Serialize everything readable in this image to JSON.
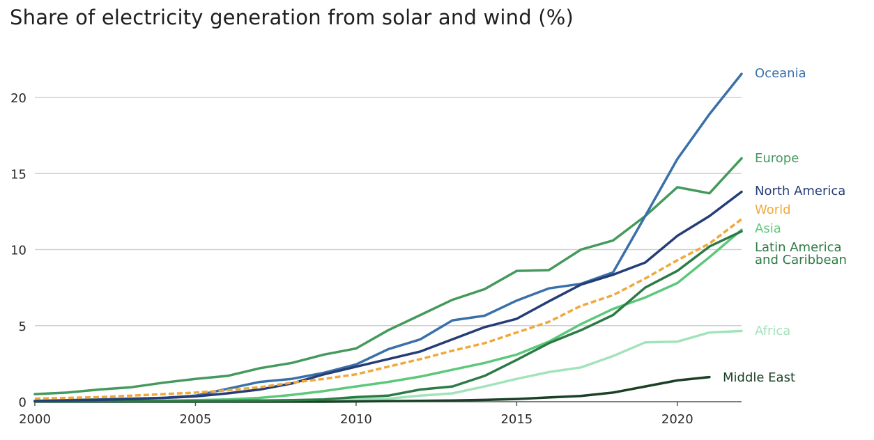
{
  "chart_data": {
    "type": "line",
    "title": "Share of electricity generation from solar and wind (%)",
    "xlabel": "",
    "ylabel": "",
    "xlim": [
      2000,
      2022
    ],
    "ylim": [
      0,
      22
    ],
    "x_ticks": [
      2000,
      2005,
      2010,
      2015,
      2020
    ],
    "y_ticks": [
      0,
      5,
      10,
      15,
      20
    ],
    "grid": "horizontal",
    "legend": "direct labels at line ends (right)",
    "x": [
      2000,
      2001,
      2002,
      2003,
      2004,
      2005,
      2006,
      2007,
      2008,
      2009,
      2010,
      2011,
      2012,
      2013,
      2014,
      2015,
      2016,
      2017,
      2018,
      2019,
      2020,
      2021,
      2022
    ],
    "series": [
      {
        "name": "Europe",
        "color": "#45995c",
        "dashed": false,
        "values": [
          0.5,
          0.6,
          0.8,
          0.95,
          1.25,
          1.5,
          1.7,
          2.2,
          2.55,
          3.1,
          3.5,
          4.7,
          5.7,
          6.7,
          7.4,
          8.6,
          8.65,
          10.0,
          10.6,
          12.2,
          14.1,
          13.7,
          16.0
        ]
      },
      {
        "name": "Oceania",
        "color": "#3a70aa",
        "dashed": false,
        "values": [
          0.05,
          0.1,
          0.15,
          0.2,
          0.25,
          0.4,
          0.85,
          1.3,
          1.5,
          1.9,
          2.45,
          3.45,
          4.1,
          5.35,
          5.65,
          6.65,
          7.45,
          7.75,
          8.5,
          12.2,
          15.95,
          18.9,
          21.55
        ]
      },
      {
        "name": "North America",
        "color": "#253d77",
        "dashed": false,
        "values": [
          0.05,
          0.08,
          0.12,
          0.18,
          0.25,
          0.35,
          0.55,
          0.8,
          1.2,
          1.8,
          2.3,
          2.8,
          3.3,
          4.1,
          4.9,
          5.45,
          6.6,
          7.7,
          8.35,
          9.15,
          10.9,
          12.2,
          13.8
        ]
      },
      {
        "name": "World",
        "color": "#f0a83a",
        "dashed": true,
        "values": [
          0.2,
          0.25,
          0.3,
          0.4,
          0.5,
          0.6,
          0.75,
          0.95,
          1.25,
          1.5,
          1.8,
          2.3,
          2.8,
          3.35,
          3.85,
          4.55,
          5.25,
          6.3,
          7.0,
          8.1,
          9.3,
          10.4,
          12.0
        ]
      },
      {
        "name": "Asia",
        "color": "#5cc87a",
        "dashed": false,
        "values": [
          0.02,
          0.03,
          0.04,
          0.05,
          0.07,
          0.1,
          0.15,
          0.25,
          0.45,
          0.7,
          1.0,
          1.3,
          1.65,
          2.1,
          2.55,
          3.1,
          3.95,
          5.1,
          6.1,
          6.85,
          7.8,
          9.5,
          11.3
        ]
      },
      {
        "name": "Latin America\nand Caribbean",
        "color": "#2c7a45",
        "dashed": false,
        "values": [
          0.02,
          0.02,
          0.03,
          0.03,
          0.04,
          0.05,
          0.06,
          0.08,
          0.1,
          0.15,
          0.3,
          0.4,
          0.8,
          1.0,
          1.7,
          2.75,
          3.85,
          4.7,
          5.7,
          7.5,
          8.6,
          10.2,
          11.2
        ]
      },
      {
        "name": "Africa",
        "color": "#a3e3bb",
        "dashed": false,
        "values": [
          0.01,
          0.01,
          0.01,
          0.02,
          0.02,
          0.03,
          0.03,
          0.05,
          0.08,
          0.1,
          0.15,
          0.2,
          0.4,
          0.55,
          1.0,
          1.5,
          1.95,
          2.25,
          3.0,
          3.9,
          3.95,
          4.55,
          4.65
        ]
      },
      {
        "name": "Middle East",
        "color": "#1b4025",
        "dashed": false,
        "values": [
          0.0,
          0.0,
          0.0,
          0.0,
          0.0,
          0.0,
          0.0,
          0.0,
          0.0,
          0.0,
          0.02,
          0.04,
          0.06,
          0.08,
          0.12,
          0.18,
          0.28,
          0.38,
          0.6,
          1.0,
          1.4,
          1.62,
          null
        ]
      }
    ]
  }
}
